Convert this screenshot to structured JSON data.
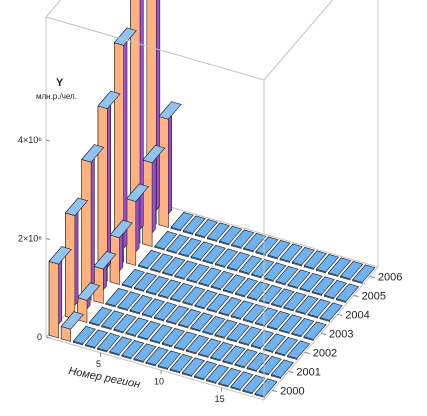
{
  "chart_data": {
    "type": "bar3d",
    "z_axis": {
      "label": "Y",
      "unit": "млн.р./чел.",
      "ticks": [
        "0",
        "2×10⁶",
        "4×10⁶"
      ]
    },
    "x_axis": {
      "label": "Номер регион",
      "ticks": [
        "5",
        "10",
        "15"
      ]
    },
    "y_axis": {
      "ticks": [
        "2000",
        "2001",
        "2002",
        "2003",
        "2004",
        "2005",
        "2006"
      ]
    },
    "years": [
      "2000",
      "2001",
      "2002",
      "2003",
      "2004",
      "2005",
      "2006"
    ],
    "region_count": 18,
    "region_one_values": [
      1500000,
      2100000,
      2800000,
      3500000,
      4400000,
      5300000,
      6400000
    ],
    "region_two_values": [
      250000,
      450000,
      700000,
      950000,
      1300000,
      1700000,
      2200000
    ],
    "other_regions_value": 0,
    "zlim": [
      0,
      6500000
    ],
    "colors": {
      "front": "#ffb27f",
      "side": "#9a4fd0",
      "top": "#8ec3f2",
      "floor": "#6fb2f2",
      "edge": "#202020"
    }
  }
}
